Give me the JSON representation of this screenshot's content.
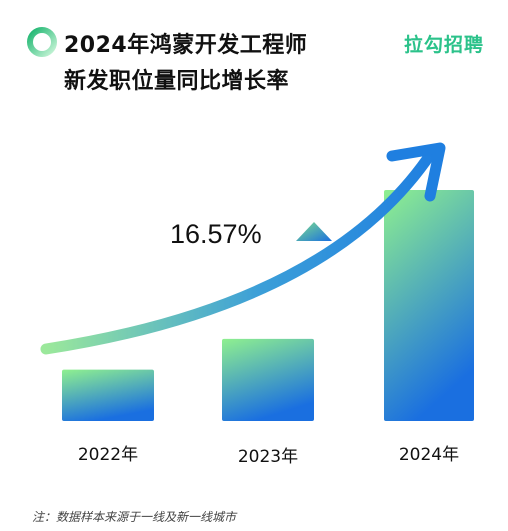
{
  "header": {
    "title_line1": "2024年鸿蒙开发工程师",
    "title_line2": "新发职位量同比增长率",
    "brand": "拉勾招聘"
  },
  "colors": {
    "brand_green": "#2bc28a",
    "bar_top": "#8ff08f",
    "bar_bottom": "#1a6fe0",
    "arrow_start": "#9be89b",
    "arrow_end": "#1f7fe0"
  },
  "chart_data": {
    "type": "bar",
    "categories": [
      "2022年",
      "2023年",
      "2024年"
    ],
    "values": [
      1.0,
      1.6,
      4.5
    ],
    "annotation": "16.57%",
    "annotation_icon": "up-triangle-icon",
    "trend_arrow": true,
    "xlabel": "",
    "ylabel": "",
    "grid": false,
    "legend": "none"
  },
  "footnote": "注：数据样本来源于一线及新一线城市"
}
